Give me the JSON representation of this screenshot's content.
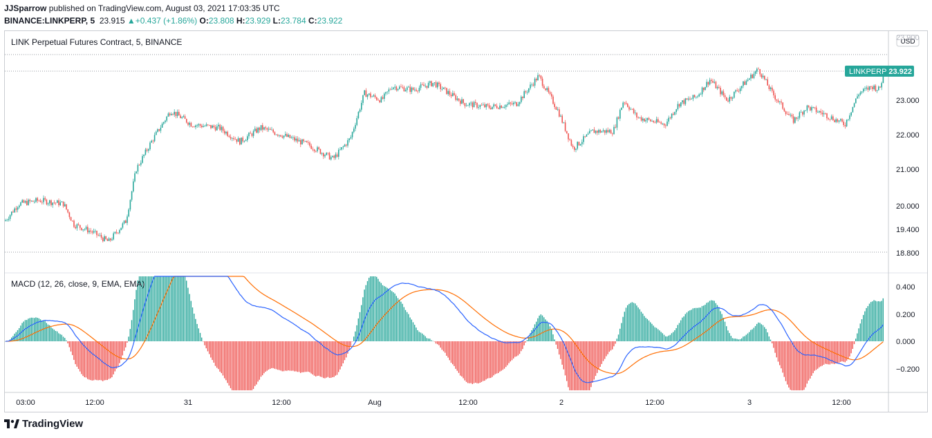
{
  "header": {
    "author": "JJSparrow",
    "published": "published on TradingView.com, August 03, 2021 17:03:35 UTC",
    "symbol": "BINANCE:LINKPERP, 5",
    "price": "23.915",
    "change": "+0.437 (+1.86%)",
    "o_label": "O:",
    "o_value": "23.808",
    "h_label": "H:",
    "h_value": "23.929",
    "l_label": "L:",
    "l_value": "23.784",
    "c_label": "C:",
    "c_value": "23.922"
  },
  "main_pane": {
    "legend": "LINK Perpetual Futures Contract, 5, BINANCE",
    "currency": "USD",
    "price_tag_symbol": "LINKPERP",
    "price_tag_value": "23.922",
    "top_label": "23.900",
    "price_labels": [
      "23.000",
      "22.000",
      "21.000",
      "20.000",
      "19.400",
      "18.800"
    ]
  },
  "macd_pane": {
    "legend": "MACD (12, 26, close, 9, EMA, EMA)",
    "labels": [
      "0.400",
      "0.200",
      "0.000",
      "−0.200"
    ]
  },
  "time_axis": [
    "03:00",
    "12:00",
    "31",
    "12:00",
    "Aug",
    "12:00",
    "2",
    "12:00",
    "3",
    "12:00"
  ],
  "footer": {
    "brand": "TradingView"
  },
  "colors": {
    "up": "#26a69a",
    "down": "#ef5350",
    "macd": "#2962ff",
    "signal": "#ff6d00"
  },
  "chart_data": {
    "type": "candlestick",
    "interval": "5",
    "price_keypoints": [
      [
        0,
        19.5
      ],
      [
        20,
        20.0
      ],
      [
        50,
        20.1
      ],
      [
        85,
        20.0
      ],
      [
        100,
        19.4
      ],
      [
        125,
        19.2
      ],
      [
        150,
        18.9
      ],
      [
        175,
        19.5
      ],
      [
        190,
        21.0
      ],
      [
        212,
        21.8
      ],
      [
        240,
        22.7
      ],
      [
        270,
        22.3
      ],
      [
        310,
        22.2
      ],
      [
        340,
        21.8
      ],
      [
        370,
        22.2
      ],
      [
        400,
        22.0
      ],
      [
        440,
        21.7
      ],
      [
        475,
        21.3
      ],
      [
        500,
        21.9
      ],
      [
        520,
        23.2
      ],
      [
        545,
        23.0
      ],
      [
        560,
        23.4
      ],
      [
        590,
        23.3
      ],
      [
        620,
        23.5
      ],
      [
        665,
        22.9
      ],
      [
        700,
        22.8
      ],
      [
        740,
        22.9
      ],
      [
        772,
        23.7
      ],
      [
        800,
        22.7
      ],
      [
        822,
        21.6
      ],
      [
        850,
        22.1
      ],
      [
        880,
        22.1
      ],
      [
        895,
        23.0
      ],
      [
        915,
        22.5
      ],
      [
        955,
        22.3
      ],
      [
        975,
        22.9
      ],
      [
        1000,
        23.1
      ],
      [
        1020,
        23.6
      ],
      [
        1045,
        23.0
      ],
      [
        1070,
        23.5
      ],
      [
        1090,
        23.9
      ],
      [
        1110,
        23.2
      ],
      [
        1140,
        22.4
      ],
      [
        1160,
        22.8
      ],
      [
        1185,
        22.6
      ],
      [
        1215,
        22.3
      ],
      [
        1235,
        23.2
      ],
      [
        1255,
        23.4
      ],
      [
        1265,
        23.3
      ],
      [
        1273,
        23.92
      ]
    ]
  }
}
